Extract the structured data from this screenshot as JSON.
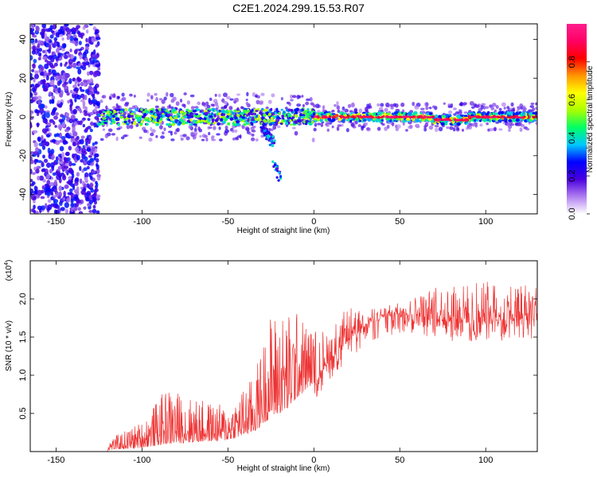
{
  "title": "C2E1.2024.299.15.53.R07",
  "chart_data": [
    {
      "type": "heatmap",
      "xlabel": "Height of straight line (km)",
      "ylabel": "Frequency (Hz)",
      "xlim": [
        -165,
        130
      ],
      "ylim": [
        -50,
        48
      ],
      "x_ticks": [
        -150,
        -100,
        -50,
        0,
        50,
        100
      ],
      "y_ticks": [
        -40,
        -20,
        0,
        20,
        40
      ],
      "colorbar": {
        "label": "Normalized spectral amplitude",
        "range": [
          0,
          1
        ],
        "ticks": [
          "0.0",
          "0.2",
          "0.4",
          "0.6",
          "0.8"
        ],
        "tick_values": [
          0.0,
          0.2,
          0.4,
          0.6,
          0.8
        ],
        "colors": [
          "#ffffff",
          "#b07ef0",
          "#4b00e0",
          "#0000ff",
          "#00c8ff",
          "#00ff64",
          "#aaff00",
          "#ffff00",
          "#ff9600",
          "#ff0000",
          "#ff0064",
          "#ff1e8c"
        ]
      },
      "features": {
        "noise_region_x": [
          -165,
          -125
        ],
        "main_line_x": [
          -125,
          130
        ],
        "main_line_freq": 0,
        "side_feature": {
          "x": [
            -30,
            -20
          ],
          "freq": [
            -5,
            -32
          ]
        }
      }
    },
    {
      "type": "line",
      "xlabel": "Height of straight line (km)",
      "ylabel": "SNR (10 * v/v)",
      "scale_note": "(x10",
      "scale_exp": "4",
      "scale_close": ")",
      "xlim": [
        -165,
        130
      ],
      "ylim": [
        0,
        2.5
      ],
      "x_ticks": [
        -150,
        -100,
        -50,
        0,
        50,
        100
      ],
      "y_ticks": [
        0.5,
        1.0,
        1.5,
        2.0
      ],
      "y_tick_labels": [
        "0.5",
        "1.0",
        "1.5",
        "2.0"
      ],
      "color": "#ee3333",
      "envelope": {
        "x": [
          -165,
          -125,
          -120,
          -100,
          -85,
          -70,
          -50,
          -35,
          -30,
          -25,
          -15,
          -10,
          0,
          10,
          20,
          30,
          40,
          50,
          60,
          70,
          80,
          90,
          100,
          110,
          120,
          130
        ],
        "base": [
          0,
          0,
          0.02,
          0.05,
          0.1,
          0.12,
          0.15,
          0.25,
          0.35,
          0.45,
          0.55,
          0.7,
          0.9,
          1.2,
          1.45,
          1.65,
          1.75,
          1.8,
          1.78,
          1.72,
          1.7,
          1.68,
          1.7,
          1.7,
          1.72,
          1.72
        ],
        "peak": [
          0,
          0,
          0.15,
          0.4,
          0.85,
          0.7,
          0.6,
          1.0,
          1.4,
          1.85,
          1.85,
          1.85,
          1.6,
          1.65,
          1.9,
          1.85,
          1.9,
          1.95,
          2.05,
          2.15,
          2.2,
          2.2,
          2.25,
          2.22,
          2.25,
          2.2
        ]
      }
    }
  ]
}
